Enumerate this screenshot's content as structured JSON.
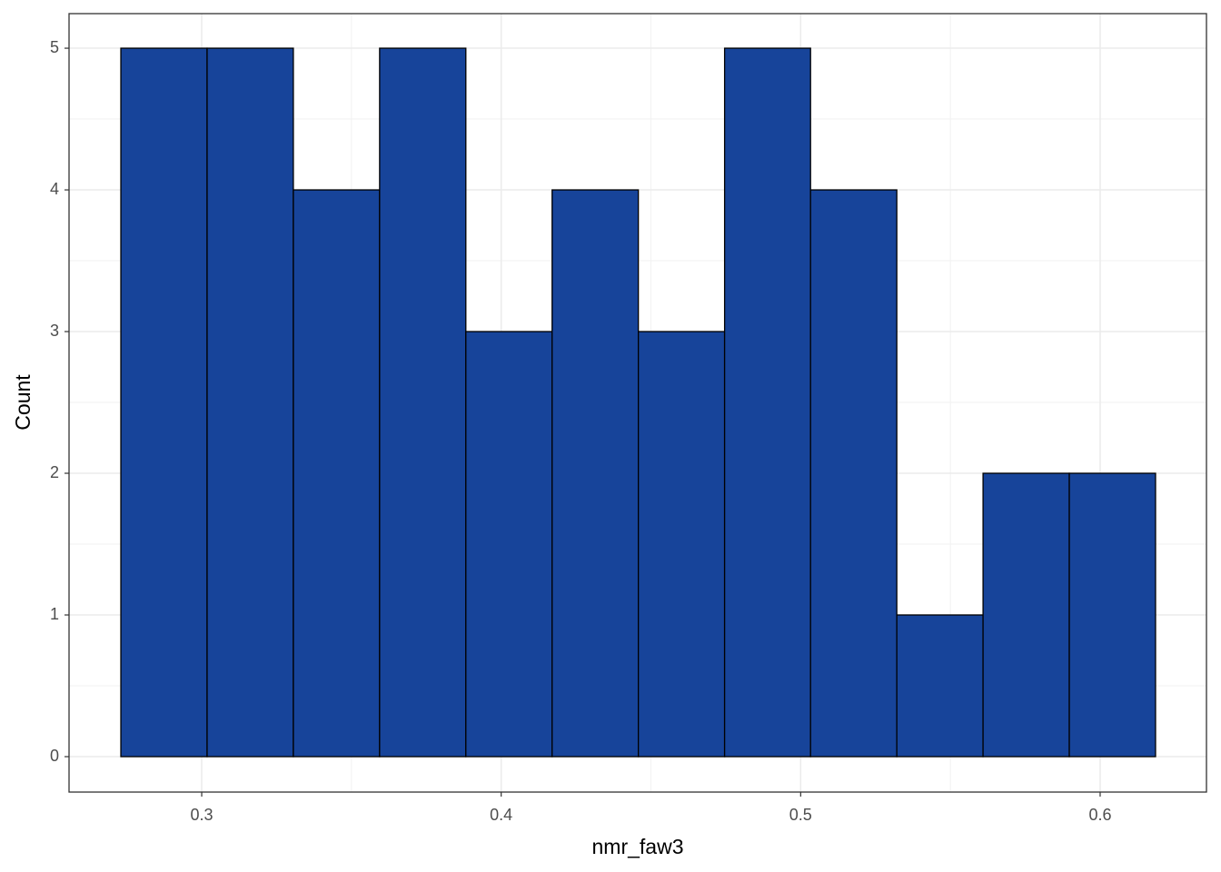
{
  "chart_data": {
    "type": "histogram",
    "x_label": "nmr_faw3",
    "y_label": "Count",
    "bins": [
      0.273,
      0.3018,
      0.3306,
      0.3594,
      0.3882,
      0.417,
      0.4458,
      0.4746,
      0.5033,
      0.5321,
      0.5609,
      0.5897,
      0.6185
    ],
    "values": [
      5,
      5,
      4,
      5,
      3,
      4,
      3,
      5,
      4,
      1,
      2,
      2
    ],
    "color": "#17449a",
    "edgecolor": "#000000",
    "xlim": [
      0.2557,
      0.6355
    ],
    "ylim": [
      -0.25,
      5.244
    ],
    "xticks": [
      0.3,
      0.4,
      0.5,
      0.6
    ],
    "yticks": [
      0,
      1,
      2,
      3,
      4,
      5
    ],
    "grid": true
  }
}
